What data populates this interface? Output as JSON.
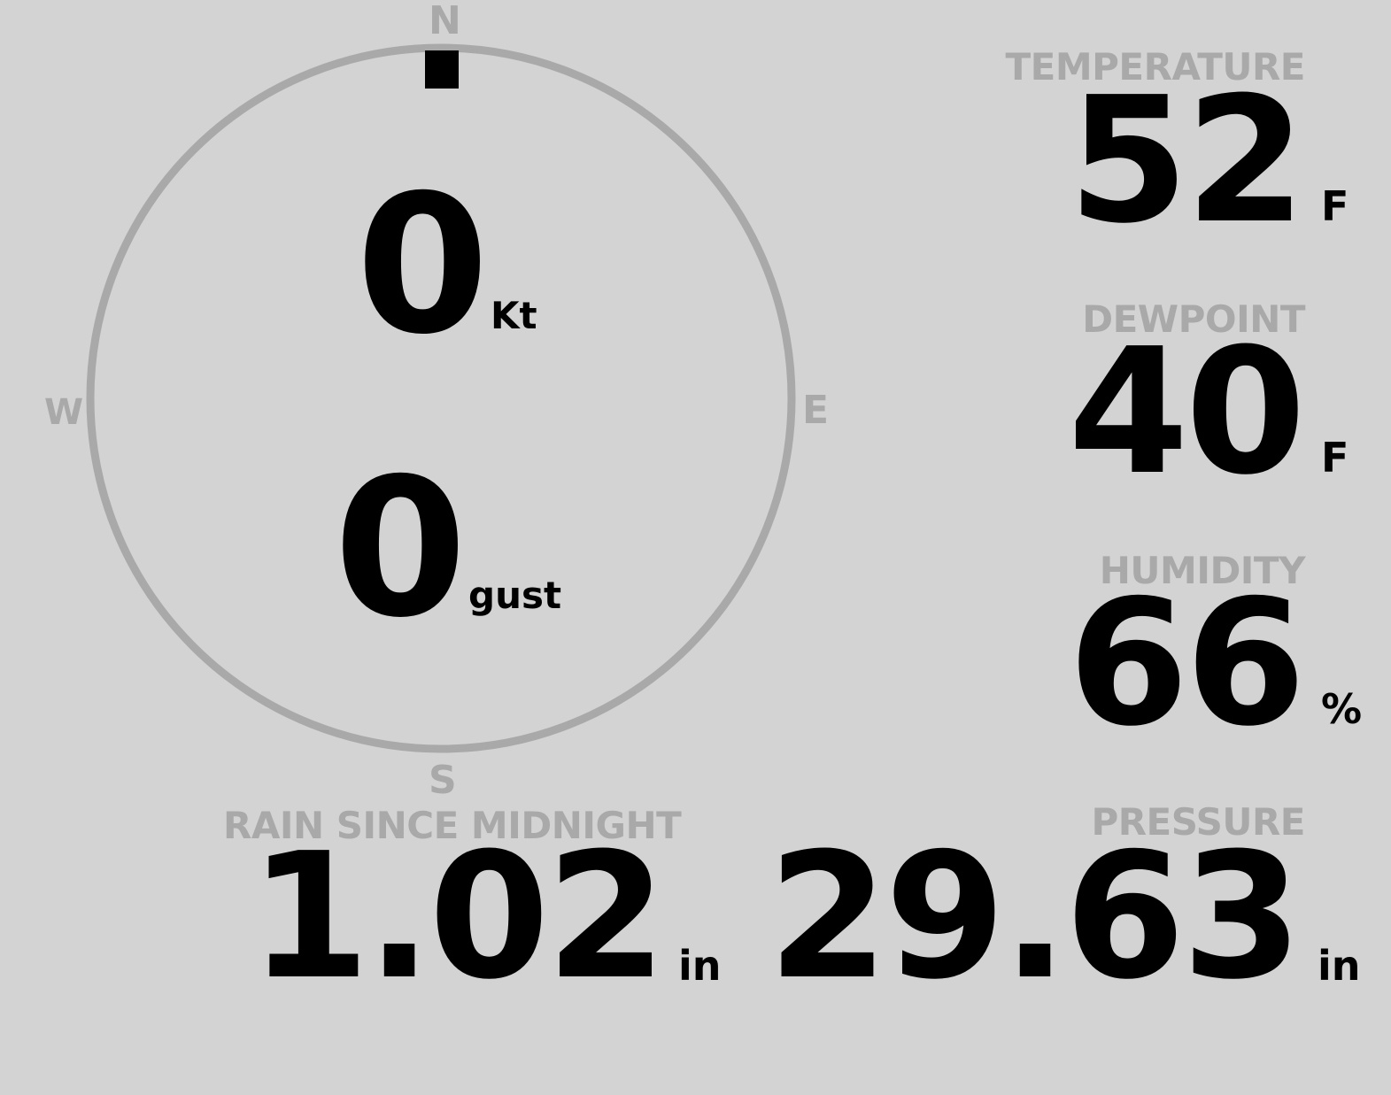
{
  "compass": {
    "north": "N",
    "south": "S",
    "east": "E",
    "west": "W",
    "wind_direction_deg": 0,
    "wind_speed": "0",
    "wind_speed_unit": "Kt",
    "gust": "0",
    "gust_unit": "gust"
  },
  "temperature": {
    "label": "TEMPERATURE",
    "value": "52",
    "unit": "F"
  },
  "dewpoint": {
    "label": "DEWPOINT",
    "value": "40",
    "unit": "F"
  },
  "humidity": {
    "label": "HUMIDITY",
    "value": "66",
    "unit": "%"
  },
  "rain": {
    "label": "RAIN SINCE MIDNIGHT",
    "value": "1.02",
    "unit": "in"
  },
  "pressure": {
    "label": "PRESSURE",
    "value": "29.63",
    "unit": "in"
  },
  "colors": {
    "background": "#d3d3d3",
    "label": "#a9a9a9",
    "value": "#000000",
    "ring": "#a9a9a9"
  }
}
